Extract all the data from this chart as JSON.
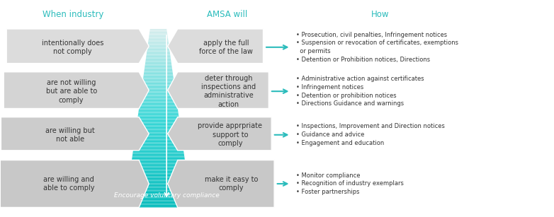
{
  "headers": [
    "When industry",
    "AMSA will",
    "How"
  ],
  "rows": [
    {
      "left_text": "intentionally does\nnot comply",
      "center_text": "apply the full\nforce of the law",
      "right_text": "• Prosecution, civil penalties, Infringement notices\n• Suspension or revocation of certificates, exemptions\n  or permits\n• Detention or Prohibition notices, Directions"
    },
    {
      "left_text": "are not willing\nbut are able to\ncomply",
      "center_text": "deter through\ninspections and\nadministrative\naction",
      "right_text": "• Administrative action against certificates\n• Infringement notices\n• Detention or prohibition notices\n• Directions Guidance and warnings"
    },
    {
      "left_text": "are willing but\nnot able",
      "center_text": "provide apprpriate\nsupport to\ncomply",
      "right_text": "• Inspections, Improvement and Direction notices\n• Guidance and advice\n• Engagement and education"
    },
    {
      "left_text": "are willing and\nable to comply",
      "center_text": "make it easy to\ncomply",
      "right_text": "• Monitor compliance\n• Recognition of industry exemplars\n• Foster partnerships"
    }
  ],
  "bottom_banner_text": "Encourage voluntary compliance",
  "gray": "#DCDCDC",
  "gray_light": "#E8E8E8",
  "teal_dark": "#35B8B8",
  "teal_mid": "#7ECDCD",
  "teal_light": "#B5E2E2",
  "teal_vlight": "#D5EEEE",
  "white": "#FFFFFF",
  "arrow_color": "#2BBCBC",
  "dark": "#333333",
  "teal_header": "#2BBCBC",
  "bg": "#FFFFFF"
}
